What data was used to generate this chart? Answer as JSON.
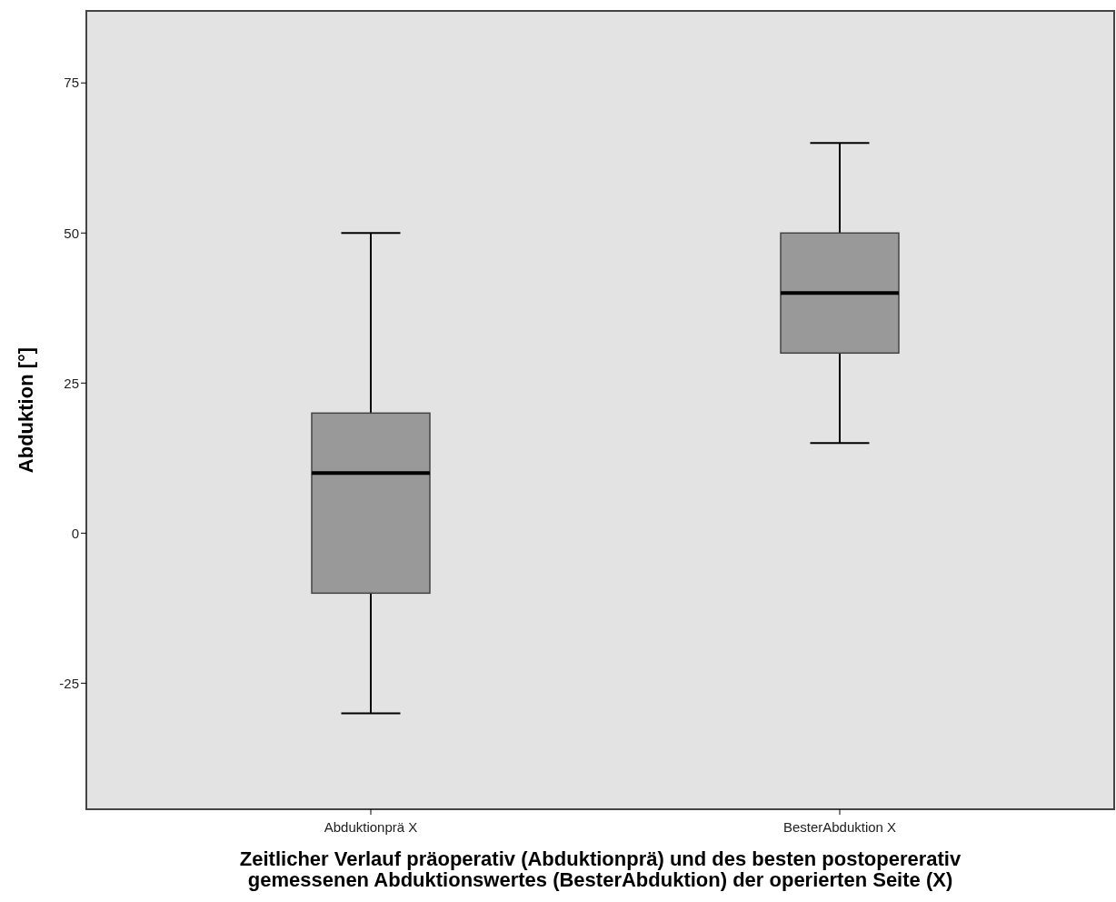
{
  "chart_data": {
    "type": "box",
    "categories": [
      "Abduktionprä X",
      "BesterAbduktion X"
    ],
    "boxes": [
      {
        "low": -30,
        "q1": -10,
        "median": 10,
        "q3": 20,
        "high": 50
      },
      {
        "low": 15,
        "q1": 30,
        "median": 40,
        "q3": 50,
        "high": 65
      }
    ],
    "color": "#999999",
    "xlabel": "Zeitlicher Verlauf präoperativ (Abduktionprä) und des besten postopererativ\ngemessenen Abduktionswertes (BesterAbduktion) der operierten Seite (X)",
    "ylabel": "Abduktion [°]",
    "ylim": [
      -46,
      87
    ],
    "yticks": [
      -25,
      0,
      25,
      50,
      75
    ],
    "grid": false
  }
}
